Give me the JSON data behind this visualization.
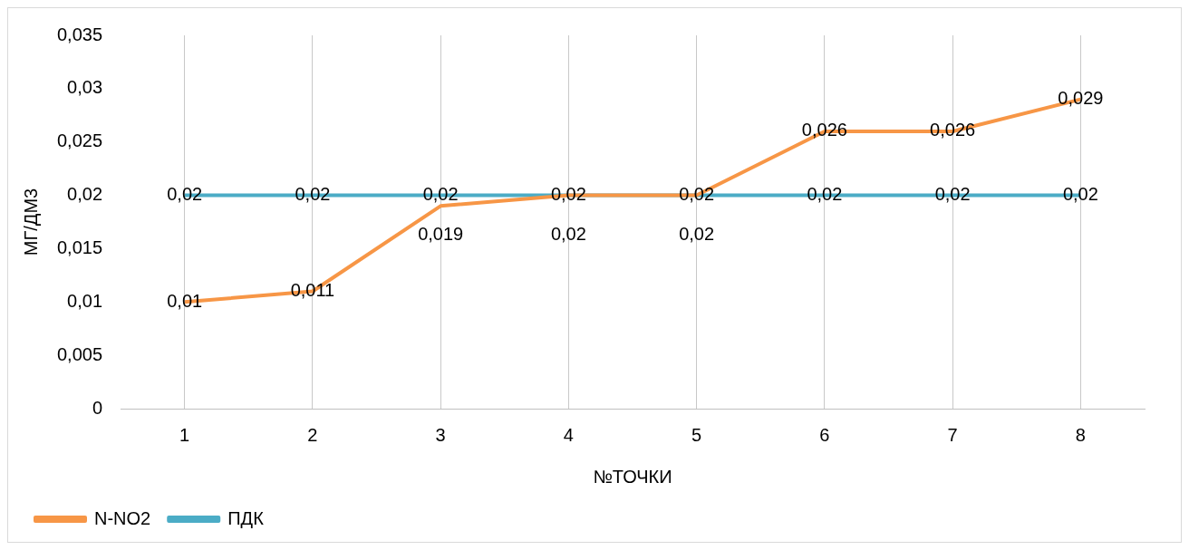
{
  "chart_data": {
    "type": "line",
    "xlabel": "№ТОЧКИ",
    "ylabel": "МГ/ДМ3",
    "categories": [
      "1",
      "2",
      "3",
      "4",
      "5",
      "6",
      "7",
      "8"
    ],
    "series": [
      {
        "name": "N-NO2",
        "color": "#f79646",
        "values": [
          0.01,
          0.011,
          0.019,
          0.02,
          0.02,
          0.026,
          0.026,
          0.029
        ],
        "value_labels": [
          "0,01",
          "0,011",
          "0,019",
          "0,02",
          "0,02",
          "0,026",
          "0,026",
          "0,029"
        ]
      },
      {
        "name": "ПДК",
        "color": "#4bacc6",
        "values": [
          0.02,
          0.02,
          0.02,
          0.02,
          0.02,
          0.02,
          0.02,
          0.02
        ],
        "value_labels": [
          "0,02",
          "0,02",
          "0,02",
          "0,02",
          "0,02",
          "0,02",
          "0,02",
          "0,02"
        ]
      }
    ],
    "ylim": [
      0,
      0.035
    ],
    "yticks": [
      {
        "value": 0,
        "label": "0"
      },
      {
        "value": 0.005,
        "label": "0,005"
      },
      {
        "value": 0.01,
        "label": "0,01"
      },
      {
        "value": 0.015,
        "label": "0,015"
      },
      {
        "value": 0.02,
        "label": "0,02"
      },
      {
        "value": 0.025,
        "label": "0,025"
      },
      {
        "value": 0.03,
        "label": "0,03"
      },
      {
        "value": 0.035,
        "label": "0,035"
      }
    ],
    "grid": "x",
    "legend": "bottom left",
    "marker": "none",
    "line_style": "solid"
  }
}
